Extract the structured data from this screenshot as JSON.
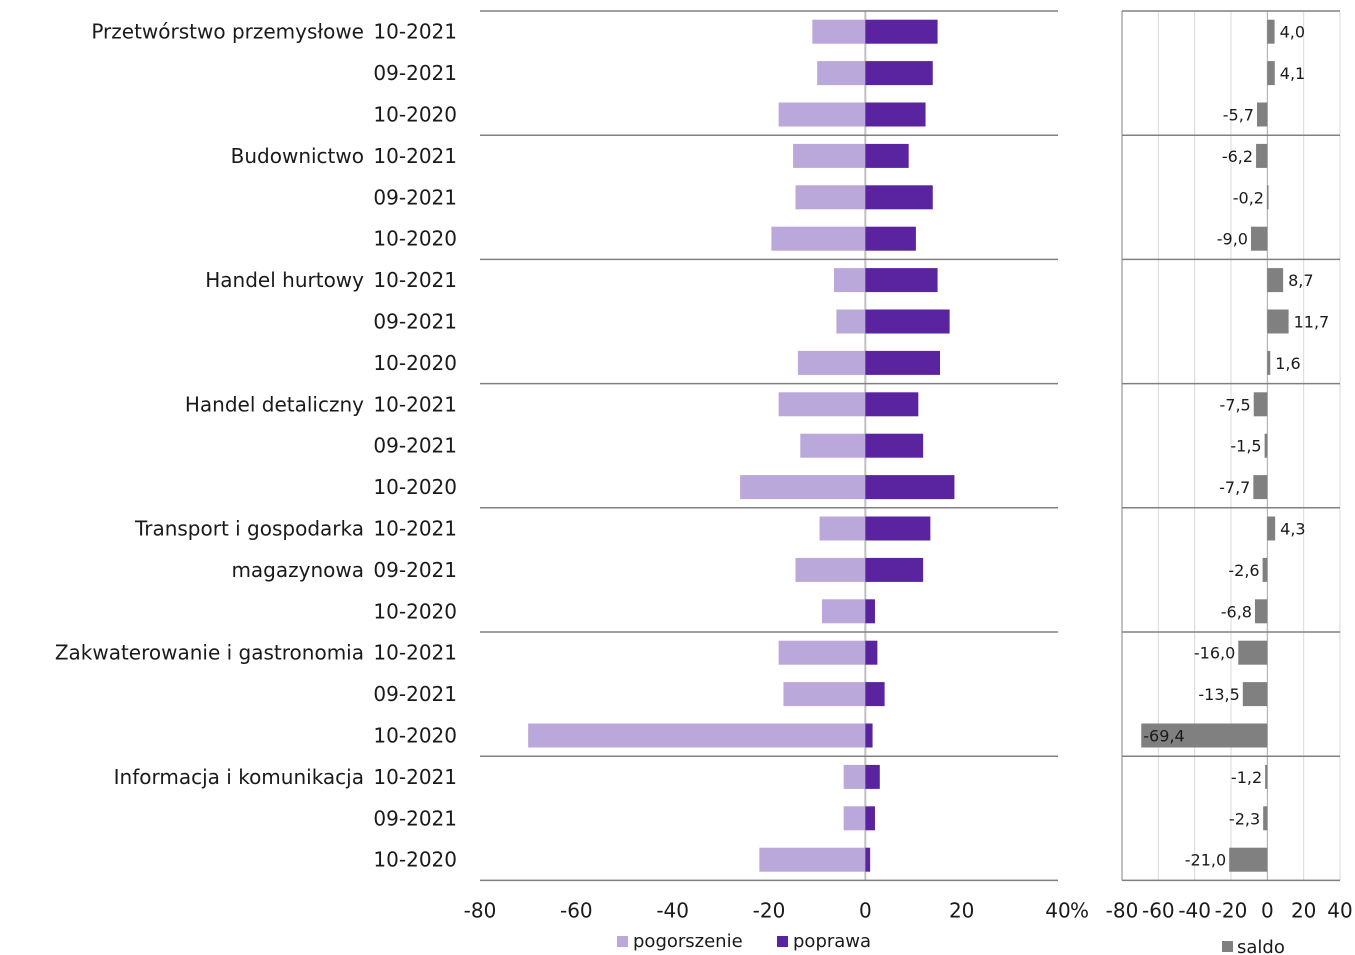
{
  "chart_data": [
    {
      "type": "bar",
      "orientation": "horizontal",
      "sectors": [
        {
          "name": "Przetwórstwo przemysłowe",
          "label_lines": [
            "Przetwórstwo przemysłowe"
          ]
        },
        {
          "name": "Budownictwo",
          "label_lines": [
            "Budownictwo"
          ]
        },
        {
          "name": "Handel hurtowy",
          "label_lines": [
            "Handel hurtowy"
          ]
        },
        {
          "name": "Handel detaliczny",
          "label_lines": [
            "Handel detaliczny"
          ]
        },
        {
          "name": "Transport i gospodarka magazynowa",
          "label_lines": [
            "Transport i gospodarka",
            "magazynowa"
          ]
        },
        {
          "name": "Zakwaterowanie i gastronomia",
          "label_lines": [
            "Zakwaterowanie i gastronomia"
          ]
        },
        {
          "name": "Informacja i komunikacja",
          "label_lines": [
            "Informacja i komunikacja"
          ]
        }
      ],
      "periods": [
        "10-2021",
        "09-2021",
        "10-2020"
      ],
      "series": [
        {
          "name": "pogorszenie",
          "color": "#b9a8d9",
          "values": [
            -11,
            -10,
            -18,
            -15,
            -14.5,
            -19.5,
            -6.5,
            -6,
            -14,
            -18,
            -13.5,
            -26,
            -9.5,
            -14.5,
            -9,
            -18,
            -17,
            -70,
            -4.5,
            -4.5,
            -22
          ]
        },
        {
          "name": "poprawa",
          "color": "#5a23a0",
          "values": [
            15,
            14,
            12.5,
            9,
            14,
            10.5,
            15,
            17.5,
            15.5,
            11,
            12,
            18.5,
            13.5,
            12,
            2,
            2.5,
            4,
            1.5,
            3,
            2,
            1
          ]
        }
      ],
      "x_ticks": [
        "-80",
        "-60",
        "-40",
        "-20",
        "0",
        "20",
        "40"
      ],
      "xlim": [
        -80,
        40
      ],
      "unit": "%",
      "legend_position": "bottom"
    },
    {
      "type": "bar",
      "orientation": "horizontal",
      "series": [
        {
          "name": "saldo",
          "color": "#808080",
          "values": [
            4.0,
            4.1,
            -5.7,
            -6.2,
            -0.2,
            -9.0,
            8.7,
            11.7,
            1.6,
            -7.5,
            -1.5,
            -7.7,
            4.3,
            -2.6,
            -6.8,
            -16.0,
            -13.5,
            -69.4,
            -1.2,
            -2.3,
            -21.0
          ],
          "labels": [
            "4,0",
            "4,1",
            "-5,7",
            "-6,2",
            "-0,2",
            "-9,0",
            "8,7",
            "11,7",
            "1,6",
            "-7,5",
            "-1,5",
            "-7,7",
            "4,3",
            "-2,6",
            "-6,8",
            "-16,0",
            "-13,5",
            "-69,4",
            "-1,2",
            "-2,3",
            "-21,0"
          ]
        }
      ],
      "x_ticks": [
        "-80",
        "-60",
        "-40",
        "-20",
        "0",
        "20",
        "40"
      ],
      "xlim": [
        -80,
        40
      ],
      "gridlines": true,
      "legend_position": "bottom"
    }
  ],
  "colors": {
    "group_line": "#808080",
    "zero_line": "#c0c0c0",
    "grid": "#d9d9d9"
  }
}
